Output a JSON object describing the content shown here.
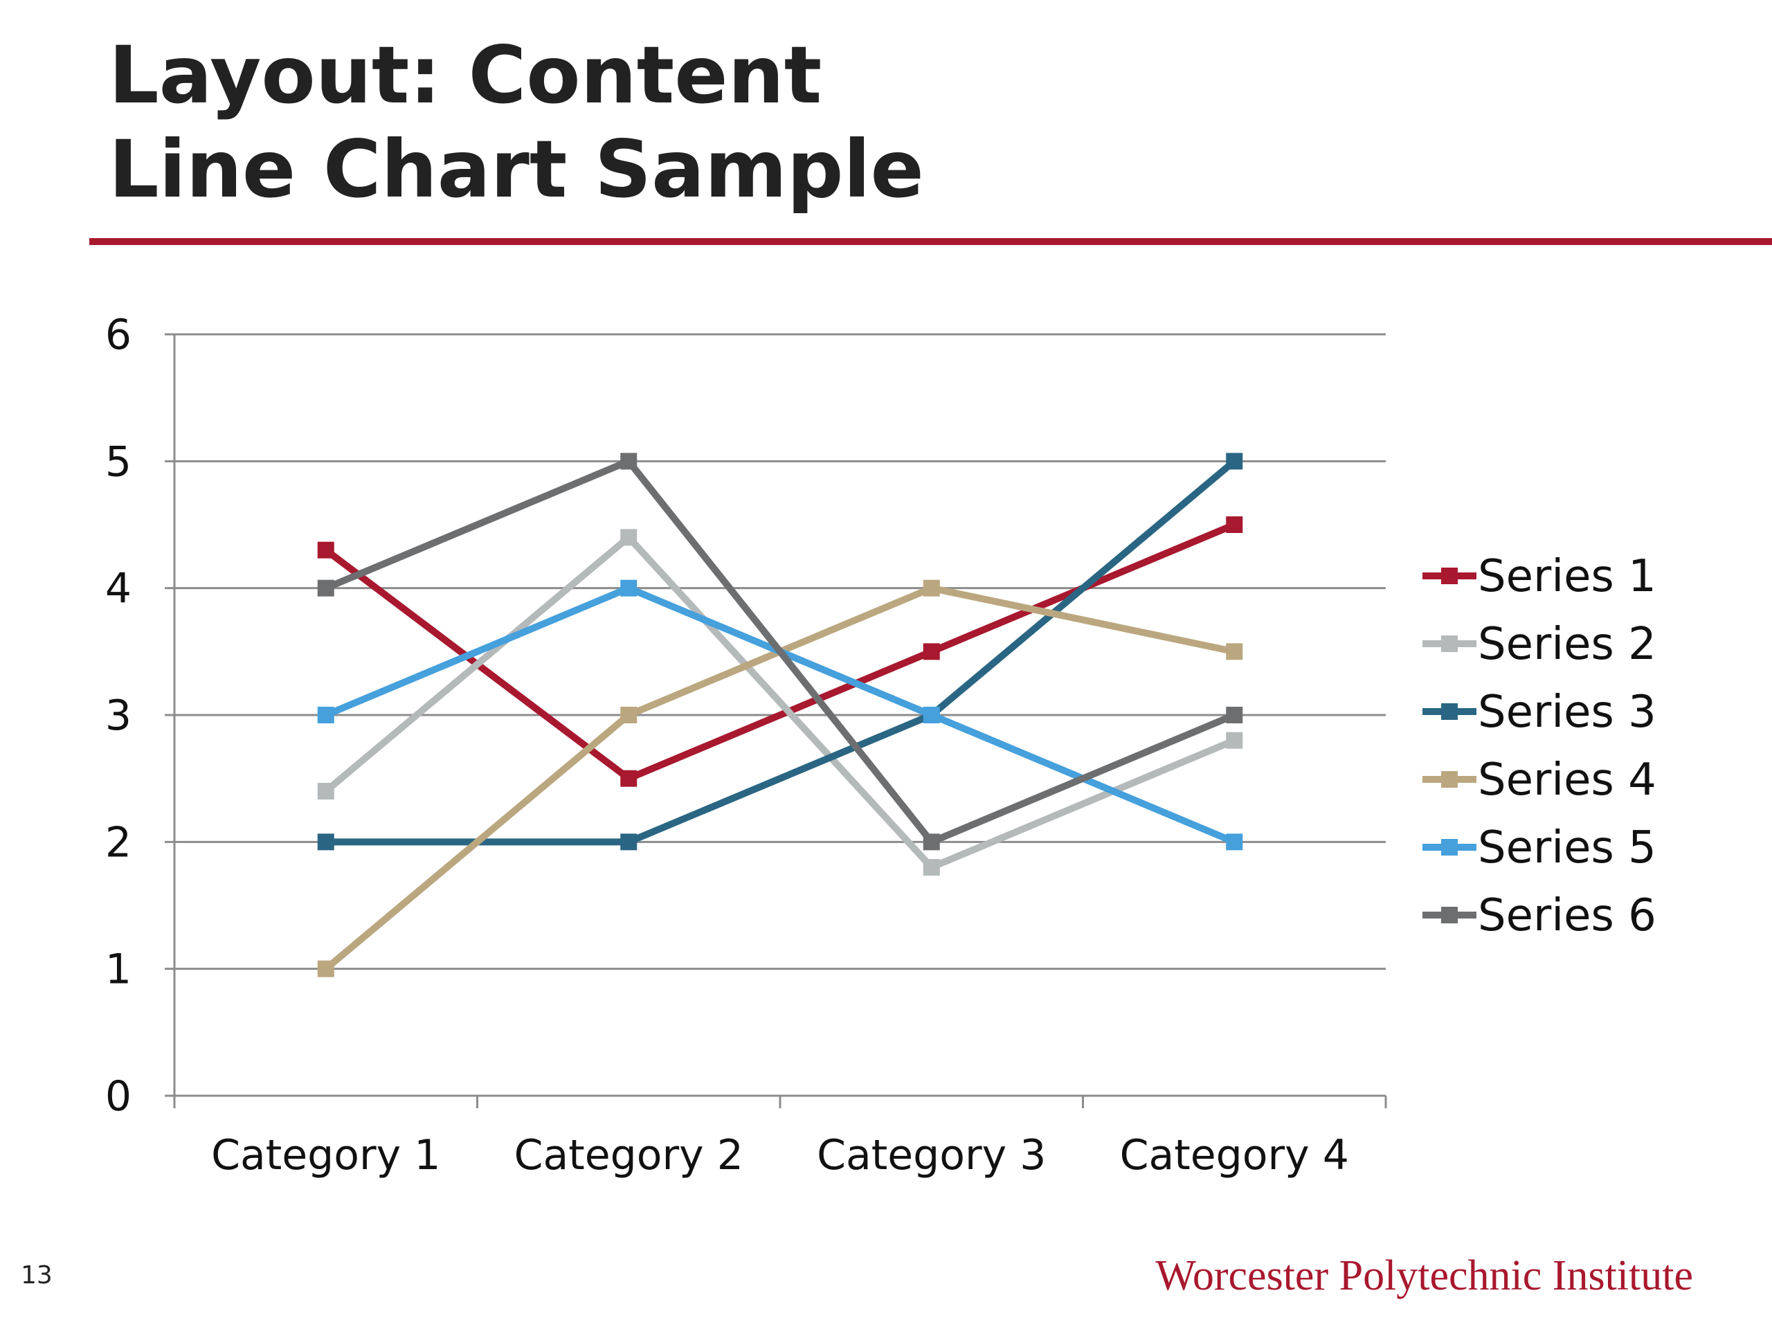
{
  "slide": {
    "title_line_1": "Layout: Content",
    "title_line_2": "Line Chart Sample",
    "page_number": "13",
    "footer_brand": "Worcester Polytechnic Institute",
    "accent_color": "#a8182e"
  },
  "chart_data": {
    "type": "line",
    "categories": [
      "Category 1",
      "Category 2",
      "Category 3",
      "Category 4"
    ],
    "ylim": [
      0,
      6
    ],
    "yticks": [
      "0",
      "1",
      "2",
      "3",
      "4",
      "5",
      "6"
    ],
    "grid": true,
    "legend_position": "right",
    "marker": "square",
    "series": [
      {
        "name": "Series 1",
        "color": "#a8182e",
        "values": [
          4.3,
          2.5,
          3.5,
          4.5
        ]
      },
      {
        "name": "Series 2",
        "color": "#b4b9ba",
        "values": [
          2.4,
          4.4,
          1.8,
          2.8
        ]
      },
      {
        "name": "Series 3",
        "color": "#2a6683",
        "values": [
          2,
          2,
          3,
          5
        ]
      },
      {
        "name": "Series 4",
        "color": "#bba77f",
        "values": [
          1,
          3,
          4,
          3.5
        ]
      },
      {
        "name": "Series 5",
        "color": "#45a0dc",
        "values": [
          3,
          4,
          3,
          2
        ]
      },
      {
        "name": "Series 6",
        "color": "#6d6e70",
        "values": [
          4,
          5,
          2,
          3
        ]
      }
    ]
  }
}
